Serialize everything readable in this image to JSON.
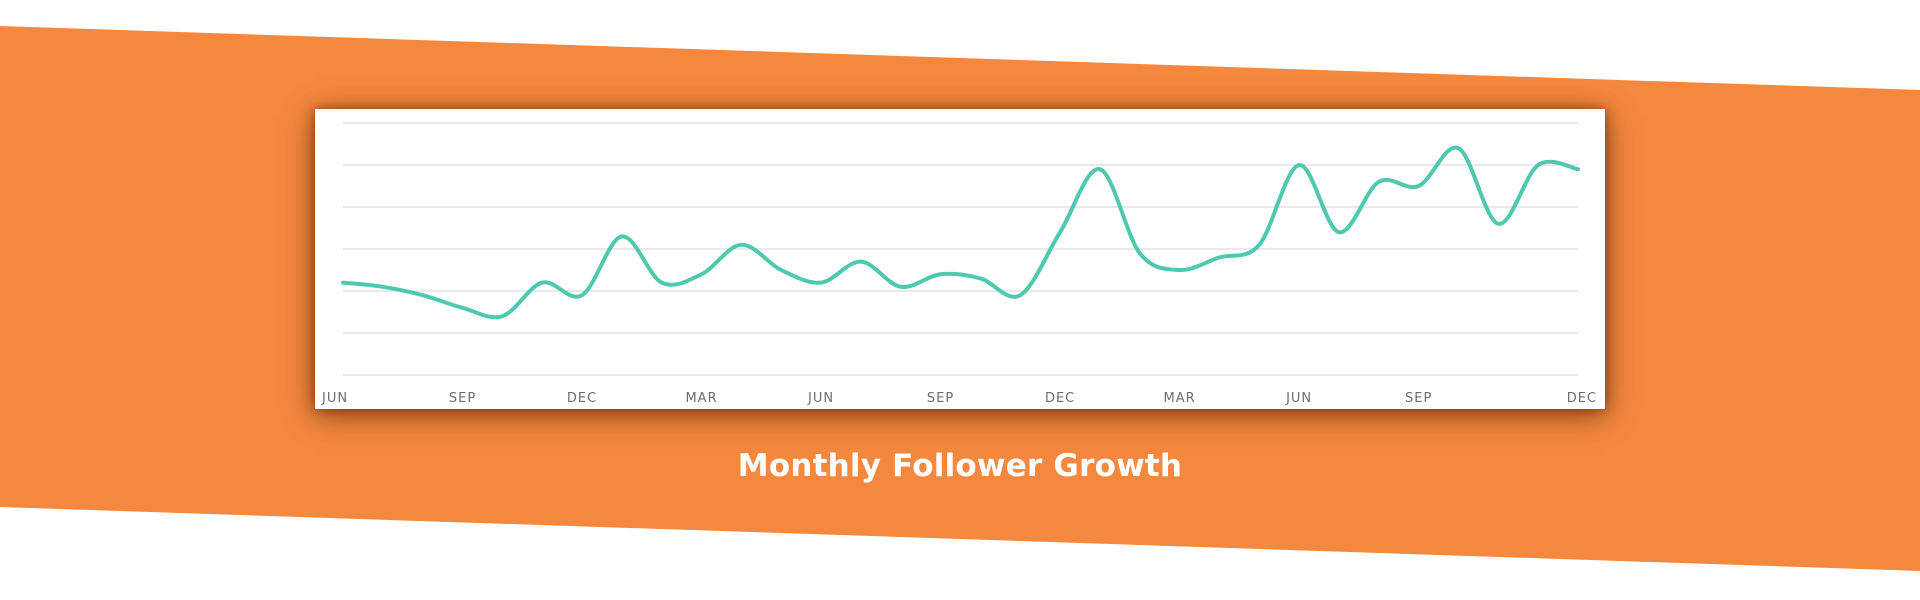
{
  "banner": {
    "background_color": "#ffffff",
    "band_color": "#f5883f"
  },
  "caption": "Monthly Follower Growth",
  "chart_data": {
    "type": "line",
    "title": "",
    "xlabel": "",
    "ylabel": "",
    "grid": true,
    "gridlines_y": 7,
    "ylim": [
      0,
      6
    ],
    "y_ticks_labeled": false,
    "line_color": "#4ec9b0",
    "x_tick_labels": [
      "JUN",
      "SEP",
      "DEC",
      "MAR",
      "JUN",
      "SEP",
      "DEC",
      "MAR",
      "JUN",
      "SEP",
      "DEC"
    ],
    "x_tick_positions": [
      0,
      3,
      6,
      9,
      12,
      15,
      18,
      21,
      24,
      27,
      30
    ],
    "series": [
      {
        "values": [
          2.2,
          2.1,
          1.9,
          1.6,
          1.4,
          2.2,
          1.9,
          3.3,
          2.2,
          2.4,
          3.1,
          2.5,
          2.2,
          2.7,
          2.1,
          2.4,
          2.3,
          1.9,
          3.4,
          4.9,
          2.9,
          2.5,
          2.8,
          3.1,
          5.0,
          3.4,
          4.6,
          4.5,
          5.4,
          3.6,
          5.0,
          4.9
        ]
      }
    ]
  }
}
